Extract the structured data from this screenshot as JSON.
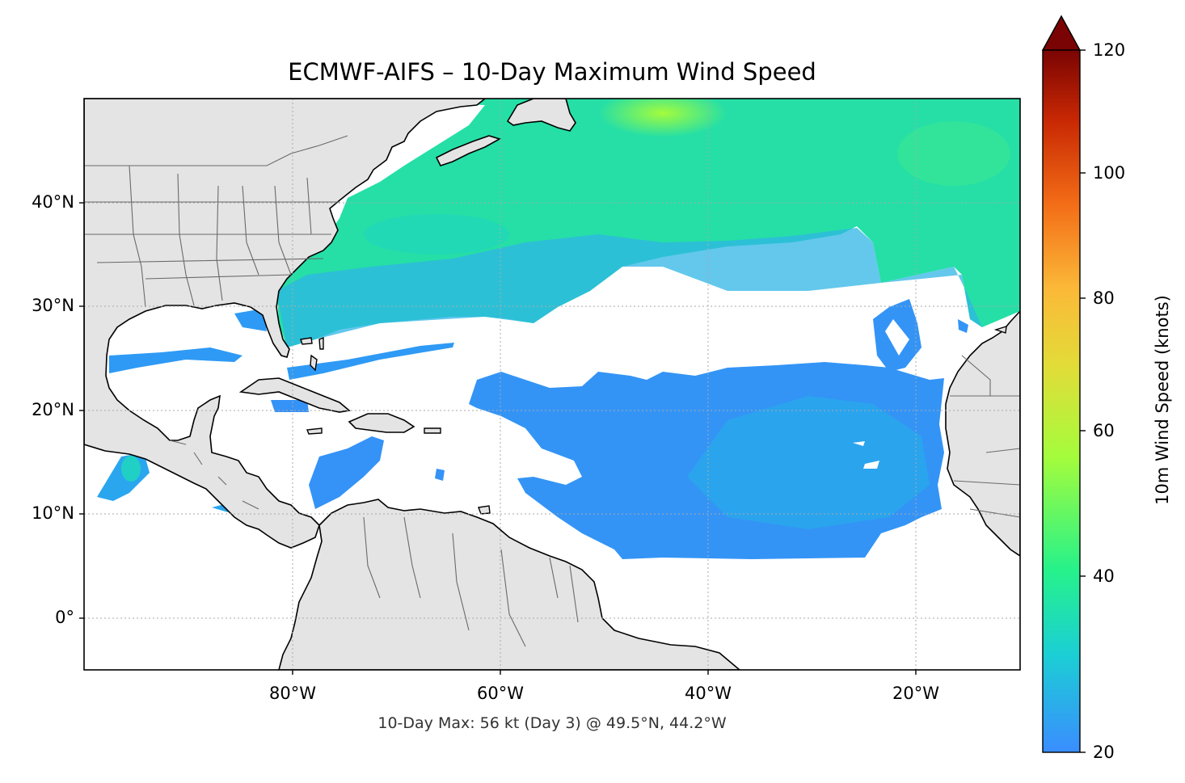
{
  "title": "ECMWF-AIFS – 10-Day Maximum Wind Speed",
  "footnote": "10-Day Max: 56 kt (Day 3) @ 49.5°N, 44.2°W",
  "map": {
    "lat_ticks": [
      "40°N",
      "30°N",
      "20°N",
      "10°N",
      "0°"
    ],
    "lon_ticks": [
      "80°W",
      "60°W",
      "40°W",
      "20°W"
    ],
    "extent": {
      "lon": [
        -100,
        -10
      ],
      "lat": [
        -5,
        50
      ]
    },
    "land_color": "#e4e4e4",
    "ocean_color": "#ffffff",
    "gridlines": true
  },
  "colorbar": {
    "label": "10m Wind Speed (knots)",
    "ticks": [
      "120",
      "100",
      "80",
      "60",
      "40",
      "20"
    ],
    "range": [
      20,
      120
    ],
    "extend": "max",
    "colormap": [
      "#3a8dff",
      "#1bcfd4",
      "#26f28a",
      "#a4fc3c",
      "#fbb938",
      "#f36d17",
      "#c82803",
      "#7a0403"
    ]
  },
  "max_wind": {
    "value_kt": 56,
    "day": 3,
    "lat": 49.5,
    "lon": -44.2
  }
}
